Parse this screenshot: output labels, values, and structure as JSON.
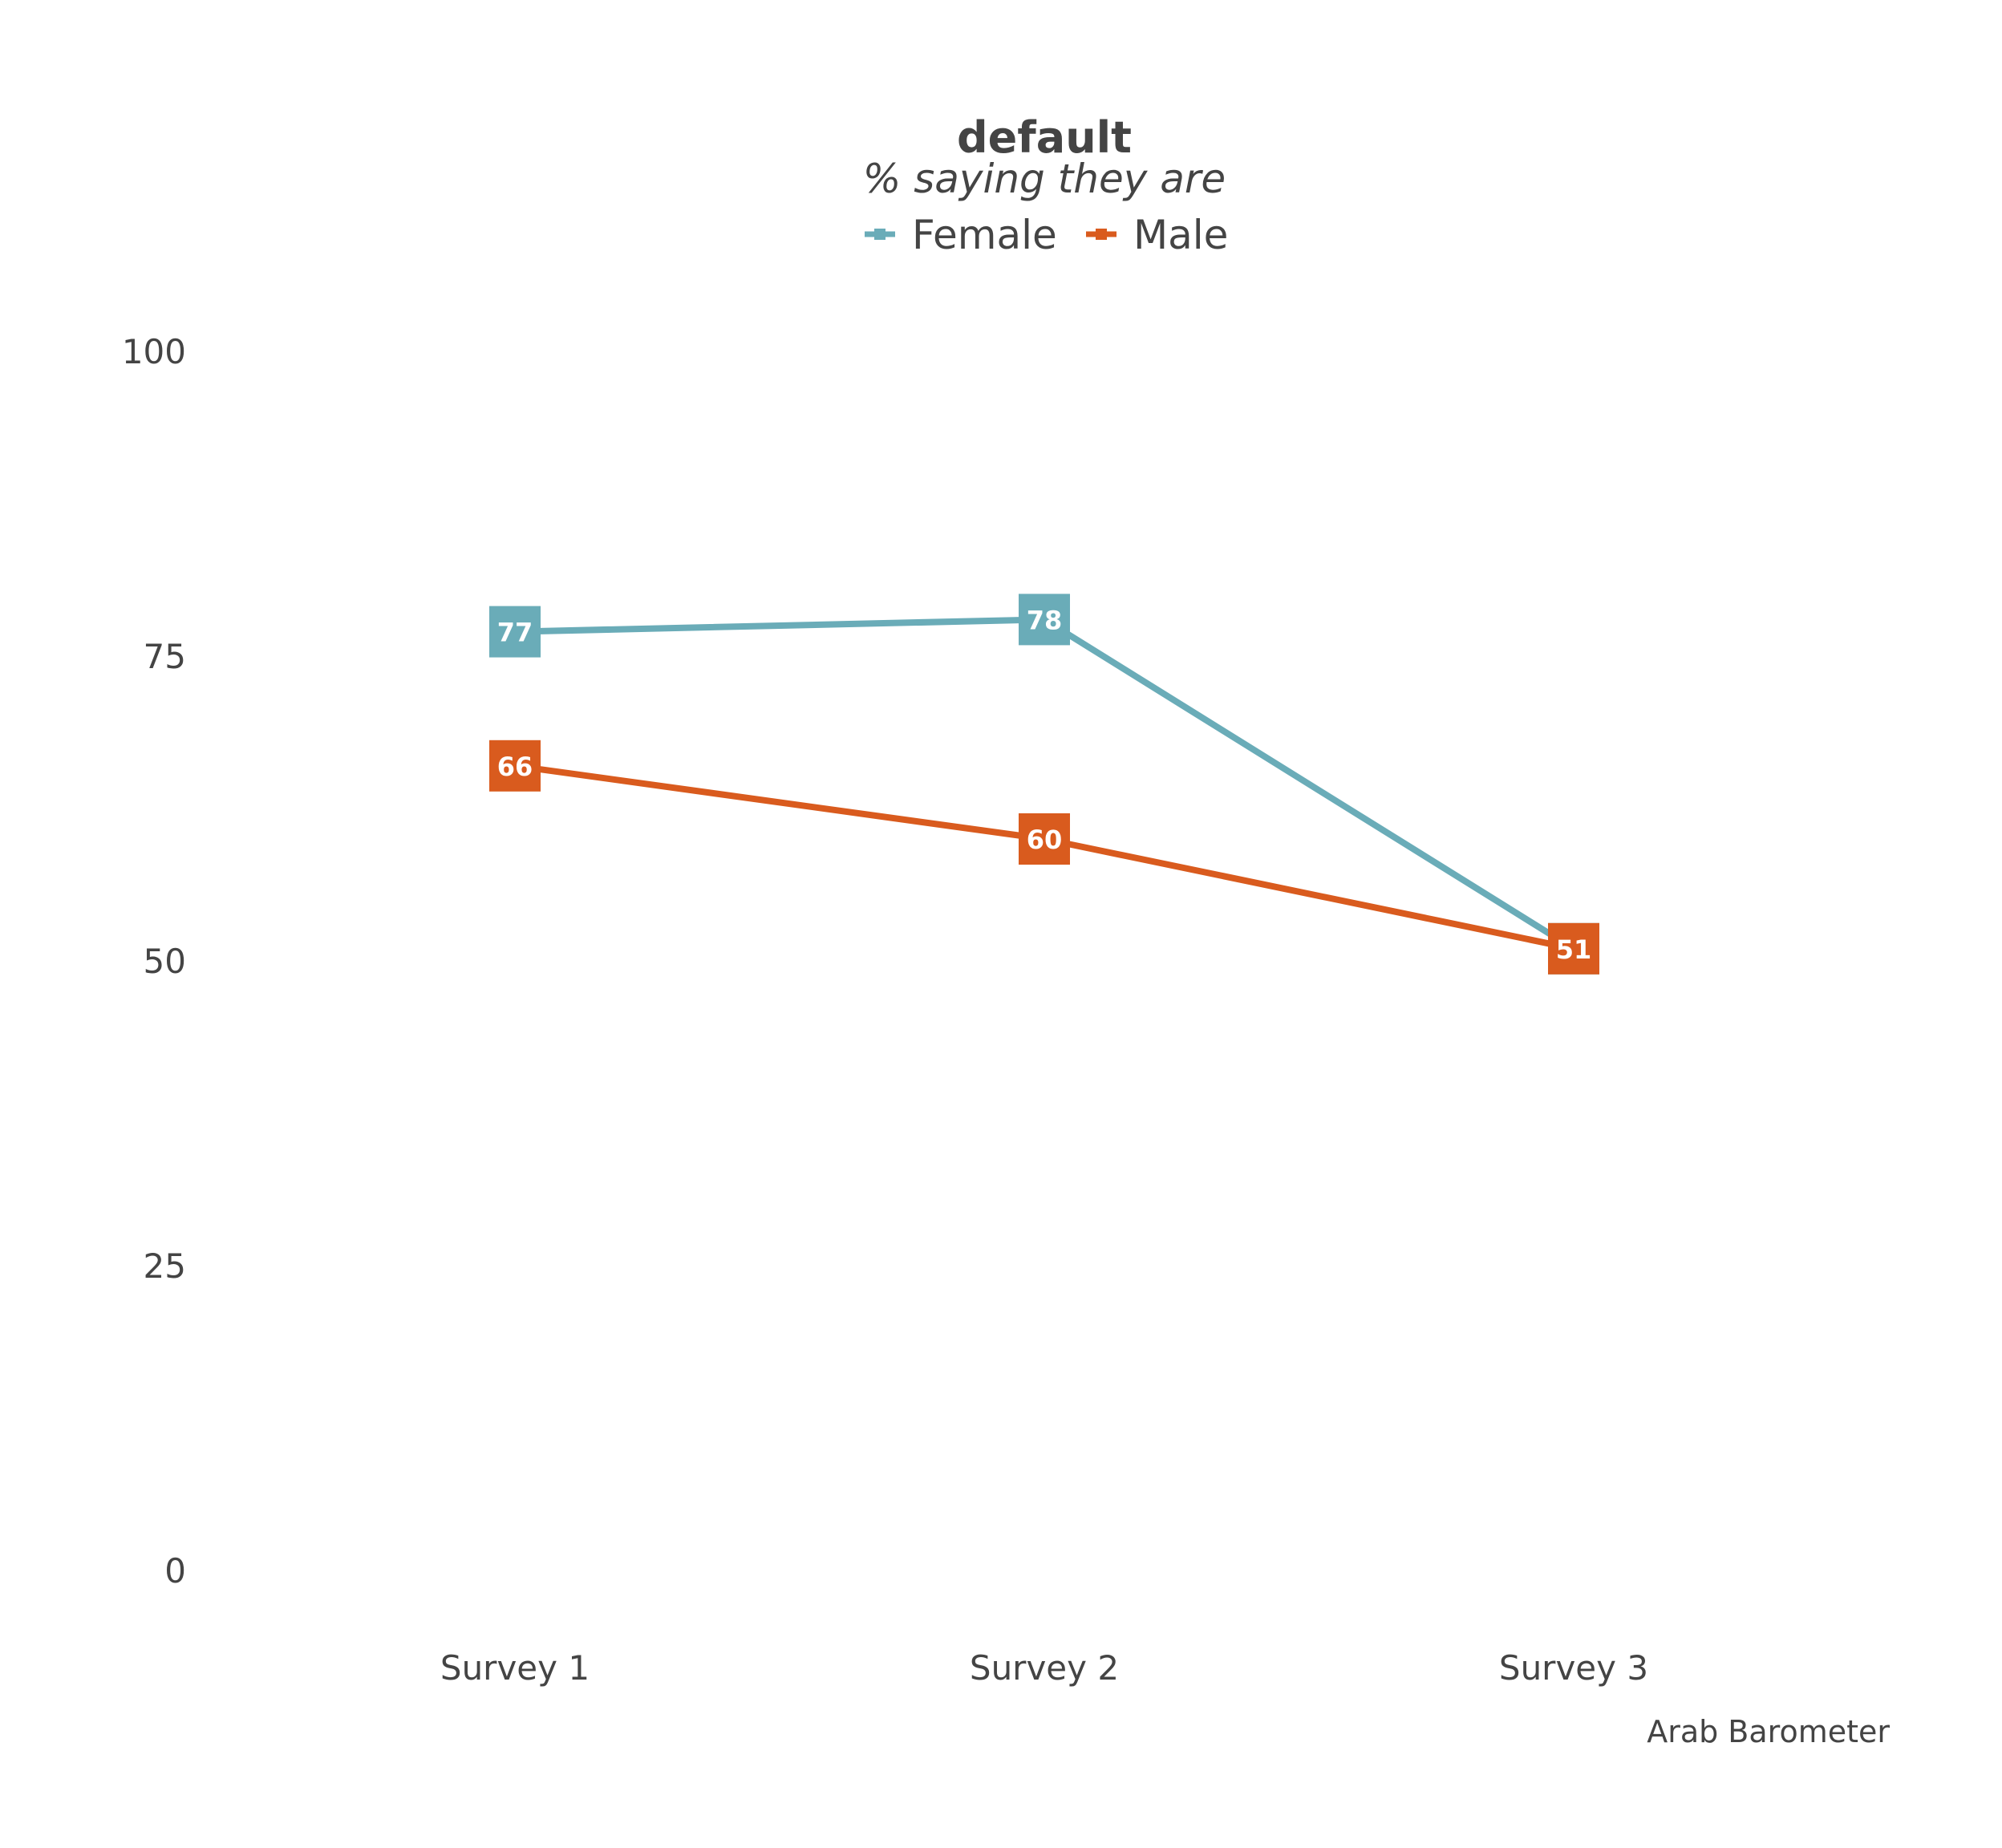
{
  "chart_data": {
    "type": "line",
    "title": "default",
    "subtitle": "% saying they are",
    "caption": "Arab Barometer",
    "categories": [
      "Survey 1",
      "Survey 2",
      "Survey 3"
    ],
    "series": [
      {
        "name": "Female",
        "color": "#6aacb8",
        "values": [
          77,
          78,
          51
        ]
      },
      {
        "name": "Male",
        "color": "#d95b1e",
        "values": [
          66,
          60,
          51
        ]
      }
    ],
    "y_ticks": [
      0,
      25,
      50,
      75,
      100
    ],
    "ylim": [
      0,
      100
    ],
    "grid": false,
    "legend_position": "top",
    "xlabel": "",
    "ylabel": ""
  }
}
